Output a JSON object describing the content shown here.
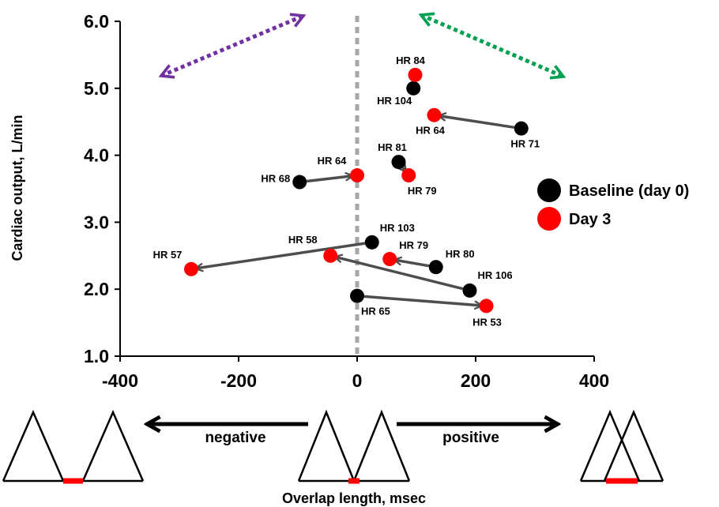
{
  "chart_data": {
    "type": "scatter",
    "title": "",
    "xlabel": "Overlap length, msec",
    "ylabel": "Cardiac output, L/min",
    "xlim": [
      -400,
      400
    ],
    "ylim": [
      1.0,
      6.0
    ],
    "xticks": [
      "-400",
      "-200",
      "0",
      "200",
      "400"
    ],
    "yticks": [
      "1.0",
      "2.0",
      "3.0",
      "4.0",
      "5.0",
      "6.0"
    ],
    "grid": false,
    "legend": {
      "position": "right",
      "entries": [
        {
          "label": "Baseline (day 0)",
          "color": "#000000"
        },
        {
          "label": "Day 3",
          "color": "#ff0000"
        }
      ]
    },
    "pairs": [
      {
        "baseline": {
          "x": 95,
          "y": 5.0,
          "label": "HR 104"
        },
        "day3": {
          "x": 98,
          "y": 5.2,
          "label": "HR 84"
        }
      },
      {
        "baseline": {
          "x": 277,
          "y": 4.4,
          "label": "HR 71"
        },
        "day3": {
          "x": 130,
          "y": 4.6,
          "label": "HR 64"
        }
      },
      {
        "baseline": {
          "x": 70,
          "y": 3.9,
          "label": "HR 81"
        },
        "day3": {
          "x": 87,
          "y": 3.7,
          "label": "HR 79"
        }
      },
      {
        "baseline": {
          "x": -97,
          "y": 3.6,
          "label": "HR 68"
        },
        "day3": {
          "x": 0,
          "y": 3.7,
          "label": "HR 64"
        }
      },
      {
        "baseline": {
          "x": 25,
          "y": 2.7,
          "label": "HR 103"
        },
        "day3": {
          "x": -280,
          "y": 2.3,
          "label": "HR 57"
        }
      },
      {
        "baseline": {
          "x": 133,
          "y": 2.33,
          "label": "HR 80"
        },
        "day3": {
          "x": 55,
          "y": 2.45,
          "label": "HR 79"
        }
      },
      {
        "baseline": {
          "x": 190,
          "y": 1.98,
          "label": "HR 106"
        },
        "day3": {
          "x": -45,
          "y": 2.5,
          "label": "HR 58"
        }
      },
      {
        "baseline": {
          "x": 0,
          "y": 1.9,
          "label": "HR 65"
        },
        "day3": {
          "x": 218,
          "y": 1.75,
          "label": "HR 53"
        }
      }
    ],
    "colors": {
      "baseline": "#000000",
      "day3": "#ff0000",
      "arrow": "#4d4d4d",
      "zero_line": "#a6a6a6",
      "purple_arrow": "#7030a0",
      "green_arrow": "#00a050",
      "overlap_bar": "#ff0000"
    }
  },
  "diagram": {
    "negative_label": "negative",
    "positive_label": "positive"
  }
}
